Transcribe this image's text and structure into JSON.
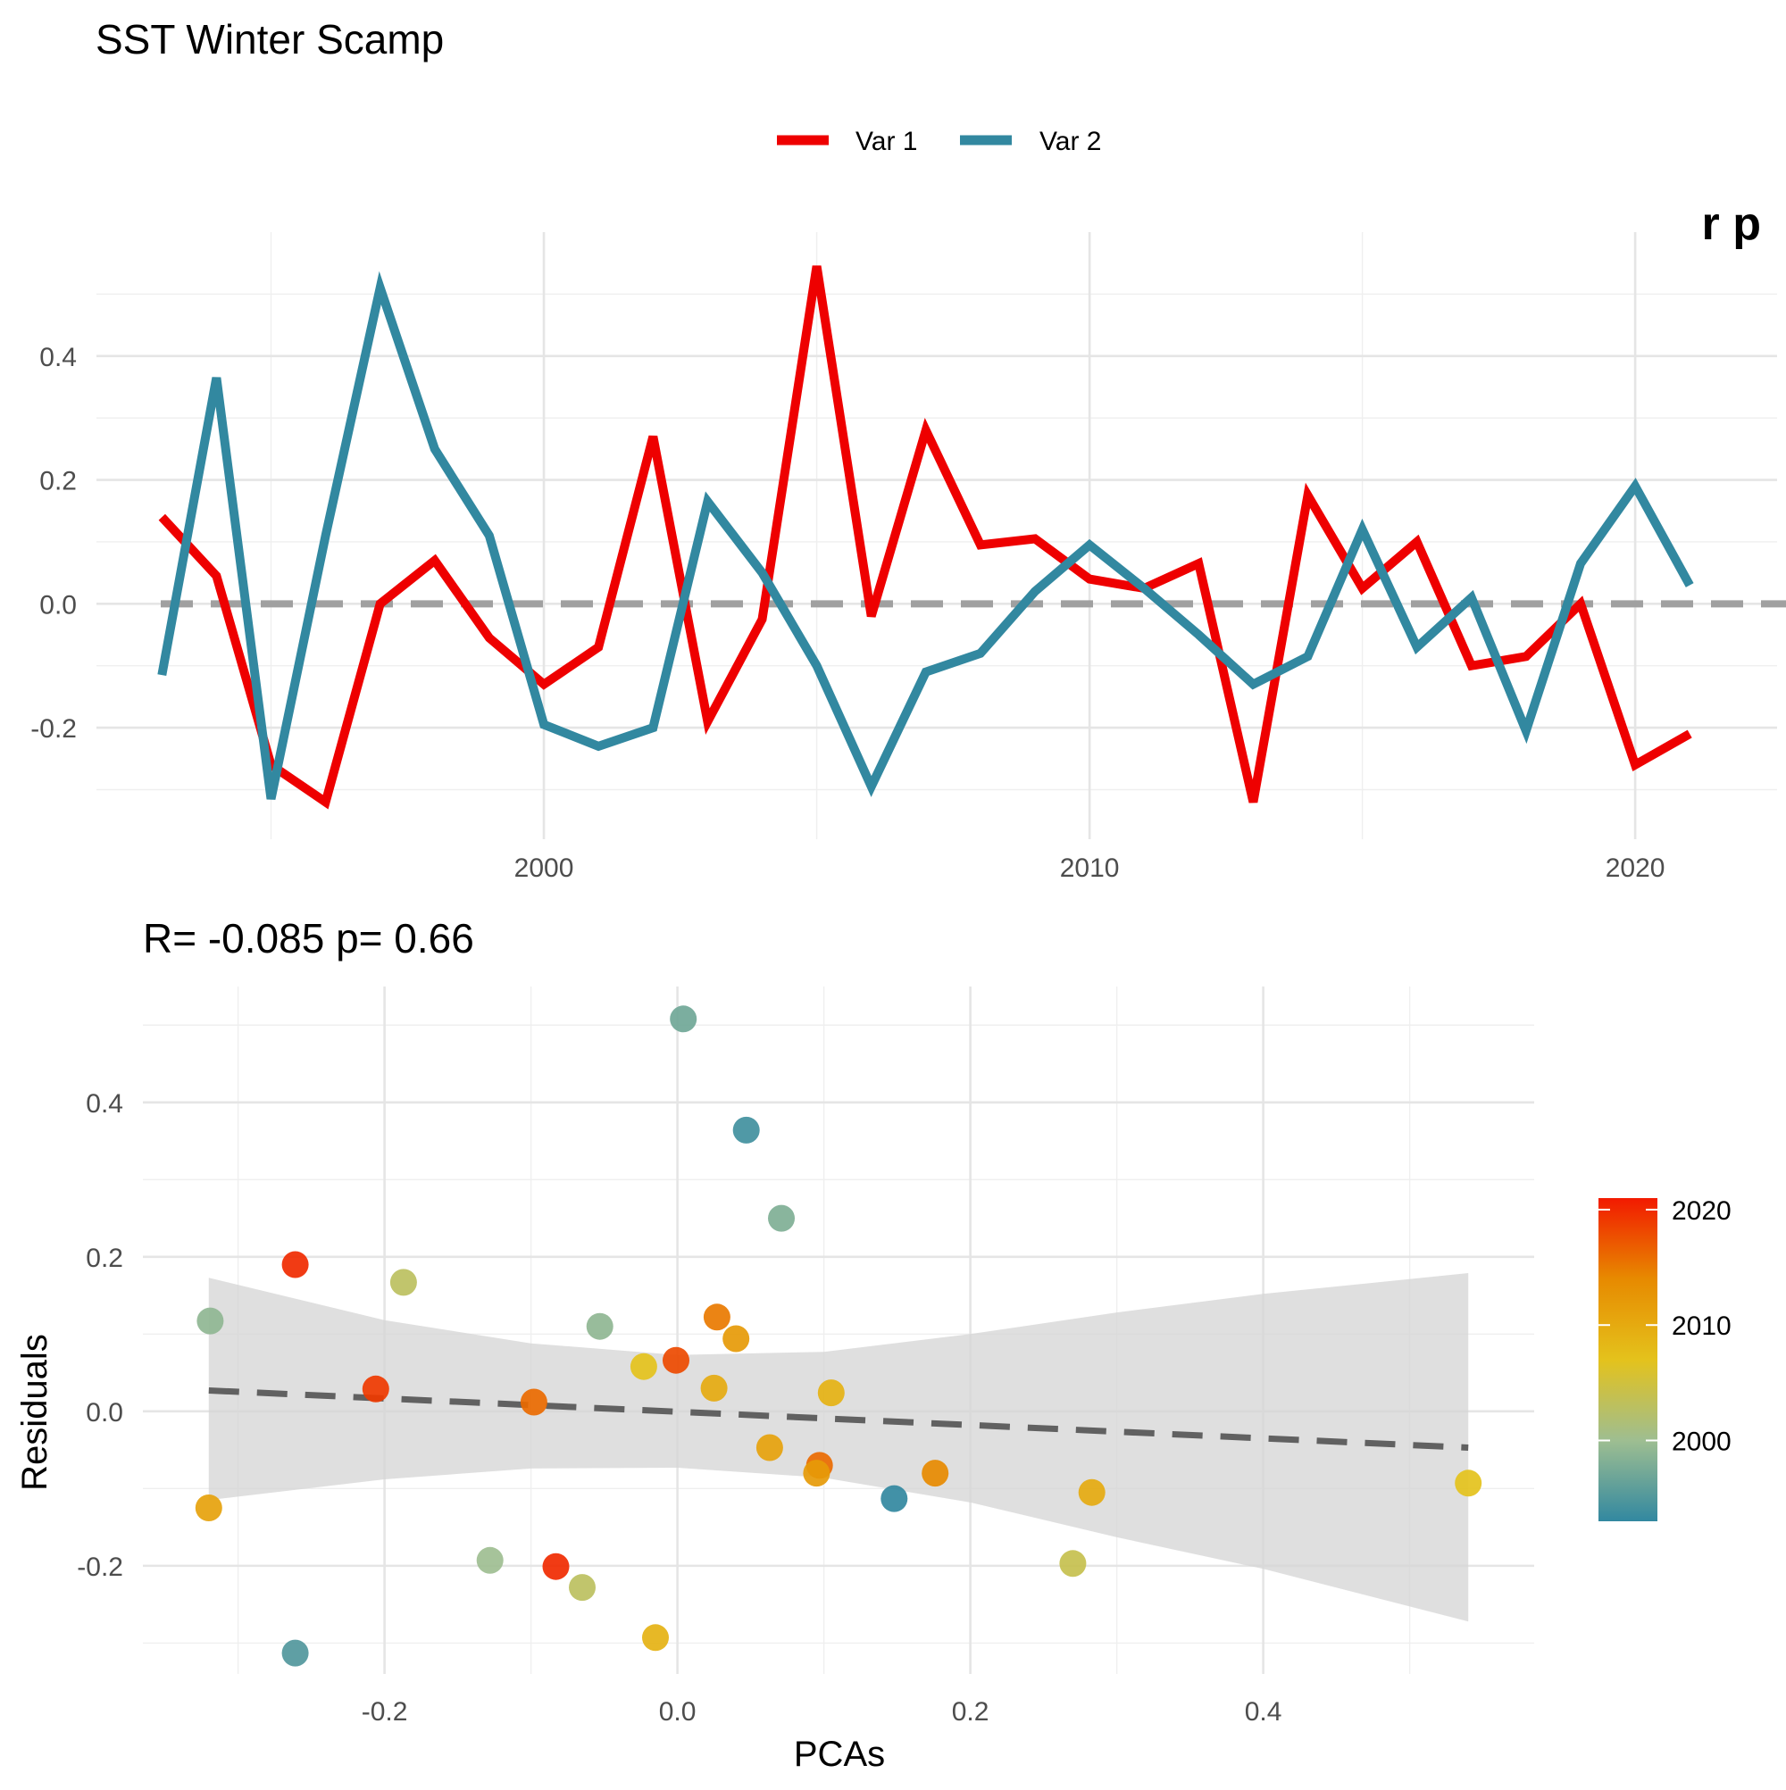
{
  "title": "SST Winter Scamp",
  "chart_data": [
    {
      "type": "line",
      "title": "SST Winter Scamp",
      "xlabel": "",
      "ylabel": "",
      "xlim": [
        1991.8,
        2022.6
      ],
      "ylim": [
        -0.38,
        0.6
      ],
      "x_ticks": [
        2000,
        2010,
        2020
      ],
      "y_ticks": [
        -0.2,
        0.0,
        0.2,
        0.4
      ],
      "grid": true,
      "legend_position": "top",
      "reference_line": 0,
      "corner_text": "r  p",
      "x": [
        1993,
        1994,
        1995,
        1996,
        1997,
        1998,
        1999,
        2000,
        2001,
        2002,
        2003,
        2004,
        2005,
        2006,
        2007,
        2008,
        2009,
        2010,
        2011,
        2012,
        2013,
        2014,
        2015,
        2016,
        2017,
        2018,
        2019,
        2020,
        2021
      ],
      "series": [
        {
          "name": "Var 1",
          "color": "#EE0000",
          "values": [
            0.14,
            0.045,
            -0.26,
            -0.32,
            0.0,
            0.07,
            -0.055,
            -0.13,
            -0.07,
            0.27,
            -0.19,
            -0.025,
            0.545,
            -0.02,
            0.28,
            0.095,
            0.105,
            0.04,
            0.025,
            0.065,
            -0.32,
            0.175,
            0.025,
            0.1,
            -0.1,
            -0.085,
            0.0,
            -0.26,
            -0.21
          ]
        },
        {
          "name": "Var 2",
          "color": "#3288A0",
          "values": [
            -0.115,
            0.365,
            -0.315,
            0.11,
            0.51,
            0.25,
            0.11,
            -0.195,
            -0.23,
            -0.2,
            0.165,
            0.05,
            -0.1,
            -0.295,
            -0.11,
            -0.08,
            0.02,
            0.095,
            0.025,
            -0.05,
            -0.13,
            -0.085,
            0.12,
            -0.07,
            0.01,
            -0.205,
            0.065,
            0.19,
            0.03
          ]
        }
      ]
    },
    {
      "type": "scatter",
      "title": "R= -0.085  p= 0.66",
      "xlabel": "PCAs",
      "ylabel": "Residuals",
      "xlim": [
        -0.365,
        0.585
      ],
      "ylim": [
        -0.34,
        0.55
      ],
      "x_ticks": [
        -0.2,
        0.0,
        0.2,
        0.4
      ],
      "y_ticks": [
        -0.2,
        0.0,
        0.2,
        0.4
      ],
      "grid": true,
      "color_scale": {
        "title": "",
        "ticks": [
          2000,
          2010,
          2020
        ],
        "range": [
          1993,
          2021
        ],
        "stops": [
          "#3288A0",
          "#9EBE91",
          "#E4C21C",
          "#E78A00",
          "#F21A00"
        ],
        "position": "right"
      },
      "fit": {
        "type": "lm",
        "line_style": "dashed",
        "x": [
          -0.32,
          0.54
        ],
        "y": [
          0.027,
          -0.047
        ],
        "ribbon": [
          {
            "x": -0.32,
            "lo": -0.115,
            "hi": 0.173
          },
          {
            "x": -0.2,
            "lo": -0.088,
            "hi": 0.118
          },
          {
            "x": -0.1,
            "lo": -0.074,
            "hi": 0.088
          },
          {
            "x": 0.0,
            "lo": -0.073,
            "hi": 0.073
          },
          {
            "x": 0.1,
            "lo": -0.086,
            "hi": 0.077
          },
          {
            "x": 0.2,
            "lo": -0.118,
            "hi": 0.1
          },
          {
            "x": 0.3,
            "lo": -0.163,
            "hi": 0.128
          },
          {
            "x": 0.4,
            "lo": -0.204,
            "hi": 0.152
          },
          {
            "x": 0.54,
            "lo": -0.272,
            "hi": 0.179
          }
        ]
      },
      "points": [
        {
          "x": 0.004,
          "y": 0.508,
          "year": 1997
        },
        {
          "x": 0.047,
          "y": 0.364,
          "year": 1994
        },
        {
          "x": 0.071,
          "y": 0.25,
          "year": 1998
        },
        {
          "x": -0.261,
          "y": 0.19,
          "year": 2020
        },
        {
          "x": -0.187,
          "y": 0.167,
          "year": 2003
        },
        {
          "x": -0.319,
          "y": 0.117,
          "year": 1999
        },
        {
          "x": -0.053,
          "y": 0.11,
          "year": 1999
        },
        {
          "x": 0.027,
          "y": 0.122,
          "year": 2015
        },
        {
          "x": 0.04,
          "y": 0.094,
          "year": 2012
        },
        {
          "x": -0.023,
          "y": 0.058,
          "year": 2007
        },
        {
          "x": -0.001,
          "y": 0.066,
          "year": 2018
        },
        {
          "x": -0.206,
          "y": 0.029,
          "year": 2019
        },
        {
          "x": 0.025,
          "y": 0.03,
          "year": 2010
        },
        {
          "x": 0.105,
          "y": 0.024,
          "year": 2009
        },
        {
          "x": -0.098,
          "y": 0.012,
          "year": 2016
        },
        {
          "x": 0.063,
          "y": -0.047,
          "year": 2011
        },
        {
          "x": 0.097,
          "y": -0.07,
          "year": 2016
        },
        {
          "x": 0.095,
          "y": -0.08,
          "year": 2012
        },
        {
          "x": 0.176,
          "y": -0.08,
          "year": 2014
        },
        {
          "x": 0.148,
          "y": -0.113,
          "year": 1993
        },
        {
          "x": 0.283,
          "y": -0.105,
          "year": 2010
        },
        {
          "x": 0.54,
          "y": -0.093,
          "year": 2007
        },
        {
          "x": -0.32,
          "y": -0.125,
          "year": 2011
        },
        {
          "x": -0.128,
          "y": -0.193,
          "year": 2000
        },
        {
          "x": -0.083,
          "y": -0.201,
          "year": 2020
        },
        {
          "x": -0.065,
          "y": -0.228,
          "year": 2003
        },
        {
          "x": 0.27,
          "y": -0.197,
          "year": 2004
        },
        {
          "x": -0.015,
          "y": -0.293,
          "year": 2009
        },
        {
          "x": -0.261,
          "y": -0.313,
          "year": 1995
        }
      ]
    }
  ]
}
